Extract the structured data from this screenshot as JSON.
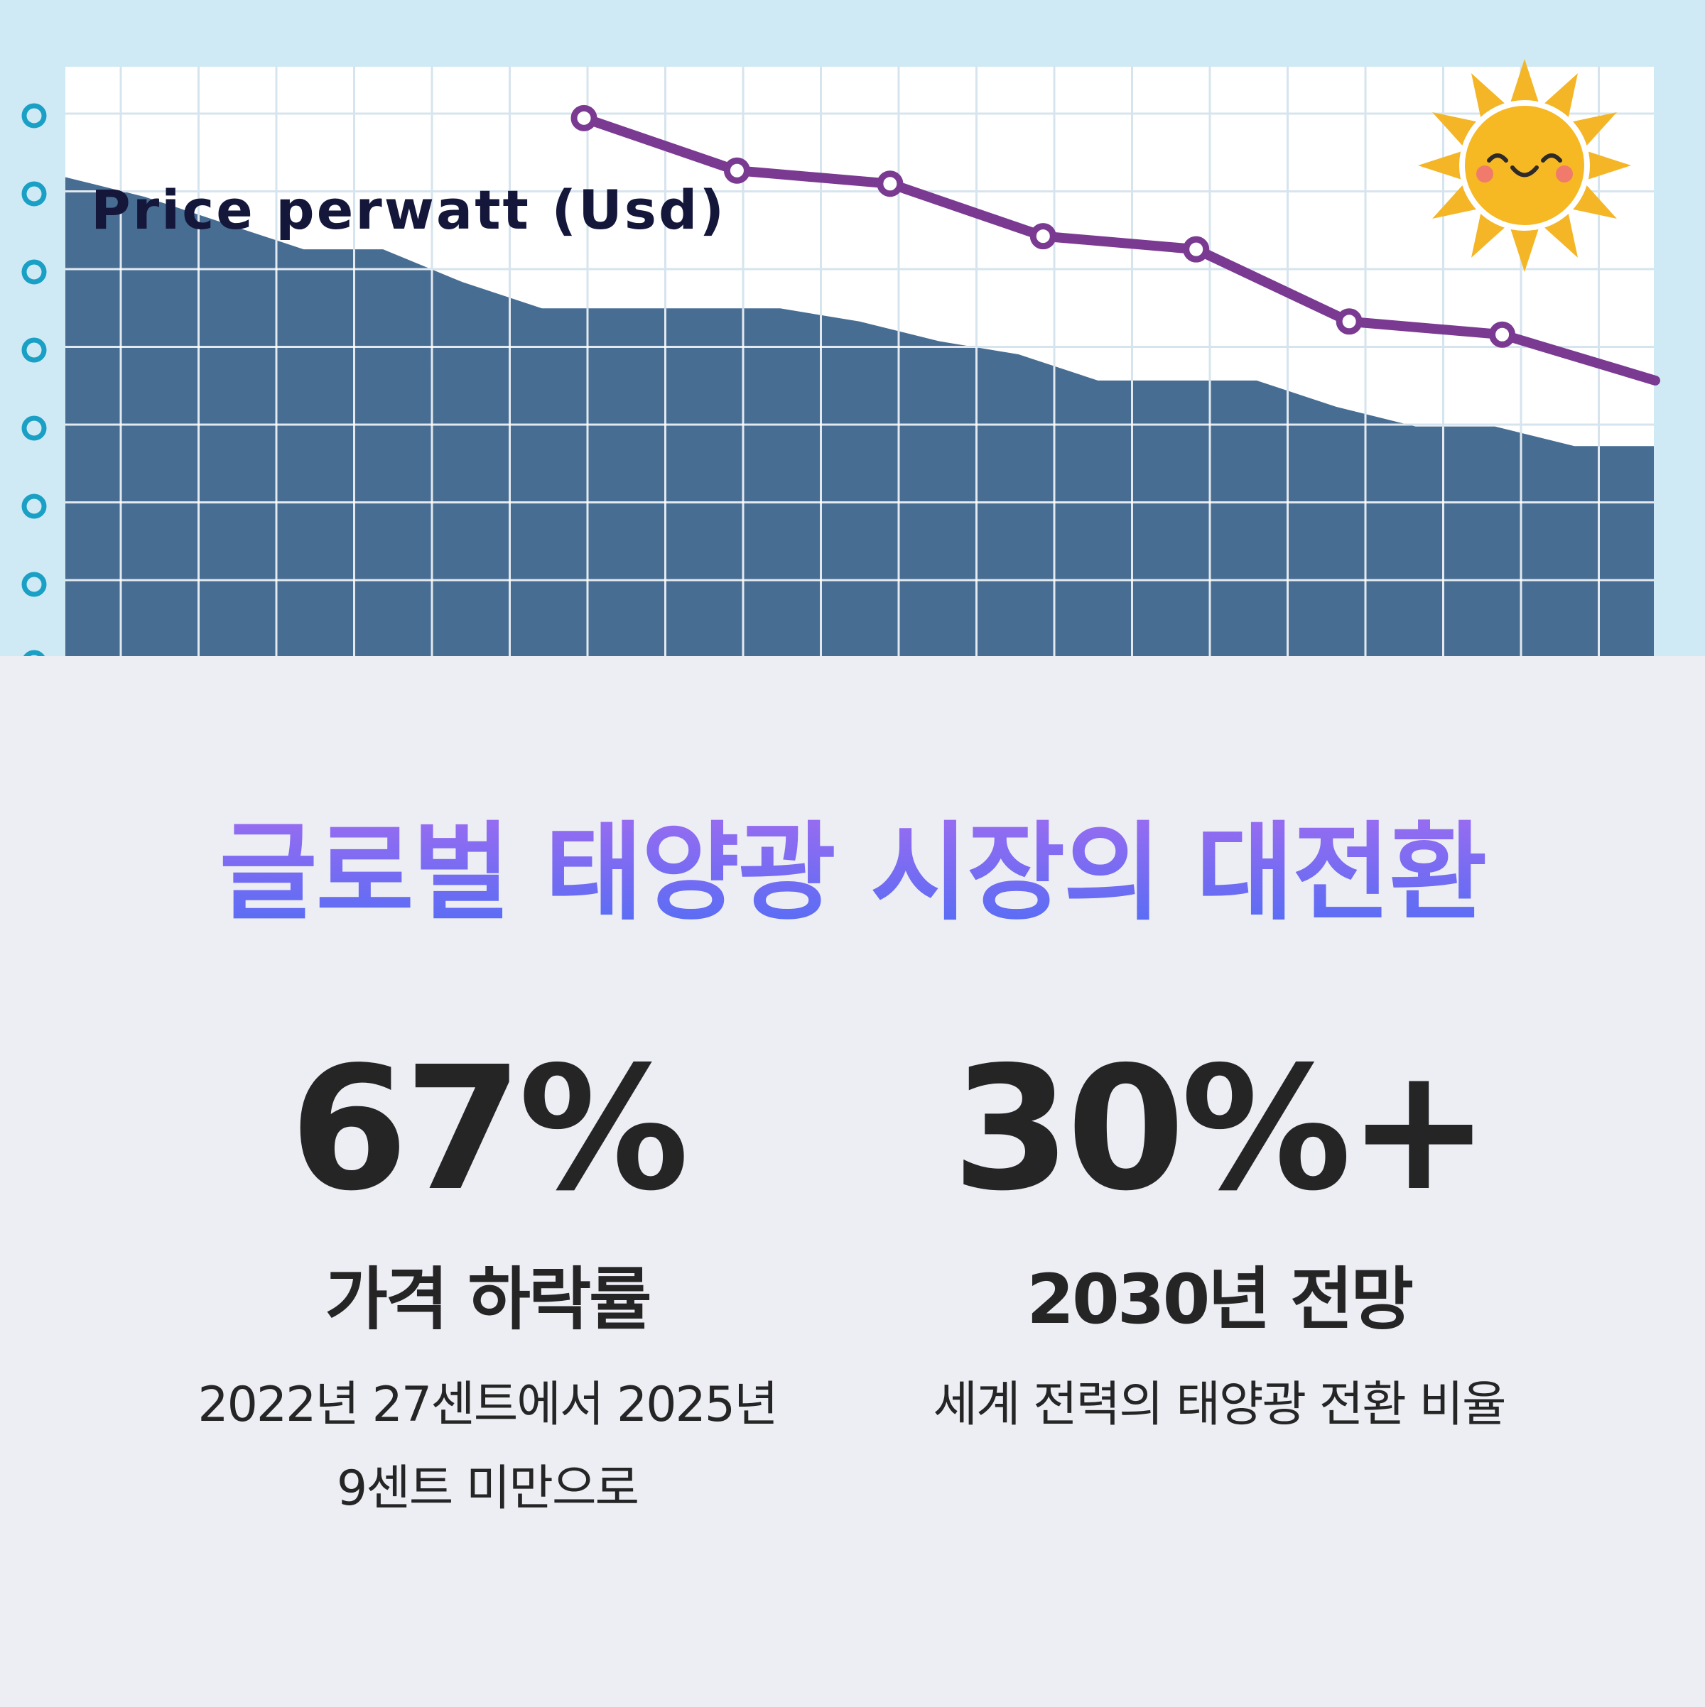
{
  "hero": {
    "chart_label": "Price perwatt (Usd)"
  },
  "chart_data": {
    "type": "line",
    "title": "Price perwatt (Usd)",
    "series": [
      {
        "values": [
          0.82,
          0.74,
          0.72,
          0.64,
          0.62,
          0.51,
          0.49,
          0.42
        ]
      }
    ],
    "area_values": [
      0.73,
      0.7,
      0.66,
      0.62,
      0.62,
      0.57,
      0.53,
      0.53,
      0.53,
      0.53,
      0.51,
      0.48,
      0.46,
      0.42,
      0.42,
      0.42,
      0.38,
      0.35,
      0.35,
      0.32,
      0.32
    ],
    "ylim": [
      0,
      1
    ],
    "grid": true,
    "colors": {
      "line": "#7b3a92",
      "area": "#476d93",
      "grid": "#d6e4ee",
      "left_dots": "#1aa0c4"
    }
  },
  "main": {
    "title": "글로벌 태양광 시장의 대전환",
    "stats": [
      {
        "value": "67%",
        "label": "가격 하락률",
        "desc_lines": [
          "2022년 27센트에서 2025년",
          "9센트 미만으로"
        ]
      },
      {
        "value": "30%+",
        "label": "2030년 전망",
        "desc_lines": [
          "세계 전력의 태양광 전환 비율"
        ]
      }
    ]
  },
  "colors": {
    "title_top": "#a06cf0",
    "title_bottom": "#4d6df5",
    "stat_text": "#252526",
    "background": "#eceef4"
  },
  "icons": [
    "sun-icon"
  ]
}
